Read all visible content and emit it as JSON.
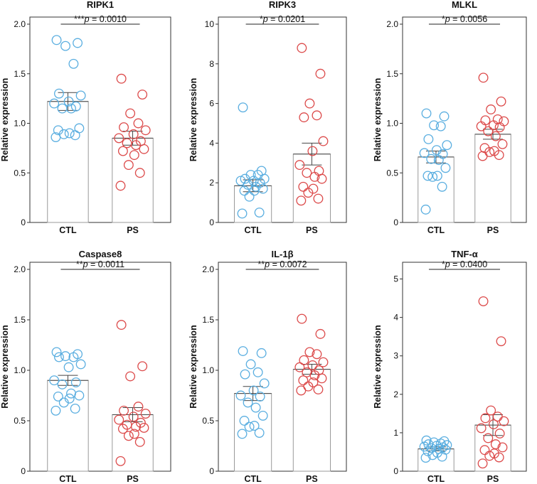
{
  "colors": {
    "ctl": "#5aaee0",
    "ps": "#dc4a4a",
    "frame": "#333333",
    "bar": "#999999"
  },
  "chart_data": [
    {
      "type": "bar",
      "title": "RIPK1",
      "ylabel": "Relative expression",
      "categories": [
        "CTL",
        "PS"
      ],
      "ylim": [
        0,
        2.0
      ],
      "yticks": [
        0,
        0.5,
        1.0,
        1.5,
        2.0
      ],
      "yticklabels": [
        "0",
        "0.5",
        "1.0",
        "1.5",
        "2.0"
      ],
      "significance": {
        "stars": "***",
        "p_symbol": "p",
        "p_text": " = 0.0010"
      },
      "series": [
        {
          "name": "CTL",
          "mean": 1.22,
          "sem": 0.09,
          "points": [
            1.84,
            1.81,
            1.78,
            1.6,
            1.3,
            1.28,
            1.22,
            1.2,
            1.17,
            1.15,
            1.15,
            0.95,
            0.93,
            0.9,
            0.89,
            0.88,
            0.86
          ]
        },
        {
          "name": "PS",
          "mean": 0.85,
          "sem": 0.07,
          "points": [
            1.45,
            1.29,
            1.1,
            1.0,
            0.96,
            0.93,
            0.89,
            0.85,
            0.82,
            0.8,
            0.78,
            0.74,
            0.72,
            0.68,
            0.58,
            0.5,
            0.37
          ]
        }
      ]
    },
    {
      "type": "bar",
      "title": "RIPK3",
      "ylabel": "Relative expression",
      "categories": [
        "CTL",
        "PS"
      ],
      "ylim": [
        0,
        10
      ],
      "yticks": [
        0,
        2,
        4,
        6,
        8,
        10
      ],
      "yticklabels": [
        "0",
        "2",
        "4",
        "6",
        "8",
        "10"
      ],
      "significance": {
        "stars": "*",
        "p_symbol": "p",
        "p_text": " = 0.0201"
      },
      "series": [
        {
          "name": "CTL",
          "mean": 1.85,
          "sem": 0.3,
          "points": [
            5.8,
            2.6,
            2.4,
            2.4,
            2.2,
            2.2,
            2.1,
            2.1,
            2.0,
            1.9,
            1.8,
            1.7,
            1.6,
            1.6,
            1.3,
            0.5,
            0.45
          ]
        },
        {
          "name": "PS",
          "mean": 3.45,
          "sem": 0.55,
          "points": [
            8.8,
            7.5,
            6.0,
            5.4,
            5.3,
            4.1,
            3.6,
            2.9,
            2.6,
            2.5,
            2.3,
            2.2,
            1.8,
            1.7,
            1.5,
            1.2,
            1.1
          ]
        }
      ]
    },
    {
      "type": "bar",
      "title": "MLKL",
      "ylabel": "Relative expression",
      "categories": [
        "CTL",
        "PS"
      ],
      "ylim": [
        0,
        2.0
      ],
      "yticks": [
        0,
        0.5,
        1.0,
        1.5,
        2.0
      ],
      "yticklabels": [
        "0",
        "0.5",
        "1.0",
        "1.5",
        "2.0"
      ],
      "significance": {
        "stars": "*",
        "p_symbol": "p",
        "p_text": " = 0.0056"
      },
      "series": [
        {
          "name": "CTL",
          "mean": 0.66,
          "sem": 0.06,
          "points": [
            1.1,
            1.07,
            0.98,
            0.97,
            0.84,
            0.78,
            0.73,
            0.7,
            0.69,
            0.64,
            0.63,
            0.55,
            0.47,
            0.47,
            0.46,
            0.36,
            0.13
          ]
        },
        {
          "name": "PS",
          "mean": 0.89,
          "sem": 0.05,
          "points": [
            1.46,
            1.22,
            1.14,
            1.04,
            1.03,
            1.02,
            0.98,
            0.97,
            0.96,
            0.92,
            0.87,
            0.79,
            0.75,
            0.72,
            0.71,
            0.68,
            0.67
          ]
        }
      ]
    },
    {
      "type": "bar",
      "title": "Caspase8",
      "ylabel": "Relative expression",
      "categories": [
        "CTL",
        "PS"
      ],
      "ylim": [
        0,
        2.0
      ],
      "yticks": [
        0,
        0.5,
        1.0,
        1.5,
        2.0
      ],
      "yticklabels": [
        "0",
        "0.5",
        "1.0",
        "1.5",
        "2.0"
      ],
      "significance": {
        "stars": "**",
        "p_symbol": "p",
        "p_text": " = 0.0011"
      },
      "series": [
        {
          "name": "CTL",
          "mean": 0.9,
          "sem": 0.05,
          "points": [
            1.18,
            1.16,
            1.14,
            1.13,
            1.13,
            1.06,
            1.03,
            0.9,
            0.88,
            0.86,
            0.77,
            0.75,
            0.74,
            0.72,
            0.68,
            0.62,
            0.6
          ]
        },
        {
          "name": "PS",
          "mean": 0.56,
          "sem": 0.07,
          "points": [
            1.45,
            1.04,
            0.94,
            0.64,
            0.6,
            0.57,
            0.54,
            0.51,
            0.48,
            0.46,
            0.44,
            0.43,
            0.42,
            0.37,
            0.35,
            0.29,
            0.1
          ]
        }
      ]
    },
    {
      "type": "bar",
      "title": "IL-1β",
      "ylabel": "Relative expression",
      "categories": [
        "CTL",
        "PS"
      ],
      "ylim": [
        0,
        2.0
      ],
      "yticks": [
        0,
        0.5,
        1.0,
        1.5,
        2.0
      ],
      "yticklabels": [
        "0",
        "0.5",
        "1.0",
        "1.5",
        "2.0"
      ],
      "significance": {
        "stars": "**",
        "p_symbol": "p",
        "p_text": " = 0.0072"
      },
      "series": [
        {
          "name": "CTL",
          "mean": 0.77,
          "sem": 0.07,
          "points": [
            1.19,
            1.17,
            1.06,
            0.98,
            0.96,
            0.87,
            0.8,
            0.75,
            0.74,
            0.68,
            0.63,
            0.55,
            0.5,
            0.45,
            0.44,
            0.38,
            0.37
          ]
        },
        {
          "name": "PS",
          "mean": 1.01,
          "sem": 0.05,
          "points": [
            1.51,
            1.36,
            1.18,
            1.16,
            1.1,
            1.08,
            1.05,
            1.03,
            1.0,
            0.98,
            0.95,
            0.92,
            0.9,
            0.88,
            0.84,
            0.81,
            0.8
          ]
        }
      ]
    },
    {
      "type": "bar",
      "title": "TNF-α",
      "ylabel": "Relative expression",
      "categories": [
        "CTL",
        "PS"
      ],
      "ylim": [
        0,
        5.25
      ],
      "yticks": [
        0,
        1,
        2,
        3,
        4,
        5
      ],
      "yticklabels": [
        "0",
        "1",
        "2",
        "3",
        "4",
        "5"
      ],
      "significance": {
        "stars": "*",
        "p_symbol": "p",
        "p_text": " = 0.0400"
      },
      "series": [
        {
          "name": "CTL",
          "mean": 0.58,
          "sem": 0.05,
          "points": [
            0.8,
            0.78,
            0.75,
            0.72,
            0.7,
            0.68,
            0.66,
            0.64,
            0.62,
            0.6,
            0.58,
            0.56,
            0.52,
            0.48,
            0.42,
            0.38,
            0.35
          ]
        },
        {
          "name": "PS",
          "mean": 1.2,
          "sem": 0.27,
          "points": [
            4.42,
            3.38,
            1.58,
            1.42,
            1.38,
            1.3,
            1.22,
            1.12,
            0.98,
            0.86,
            0.7,
            0.62,
            0.55,
            0.46,
            0.4,
            0.36,
            0.2
          ]
        }
      ]
    }
  ]
}
